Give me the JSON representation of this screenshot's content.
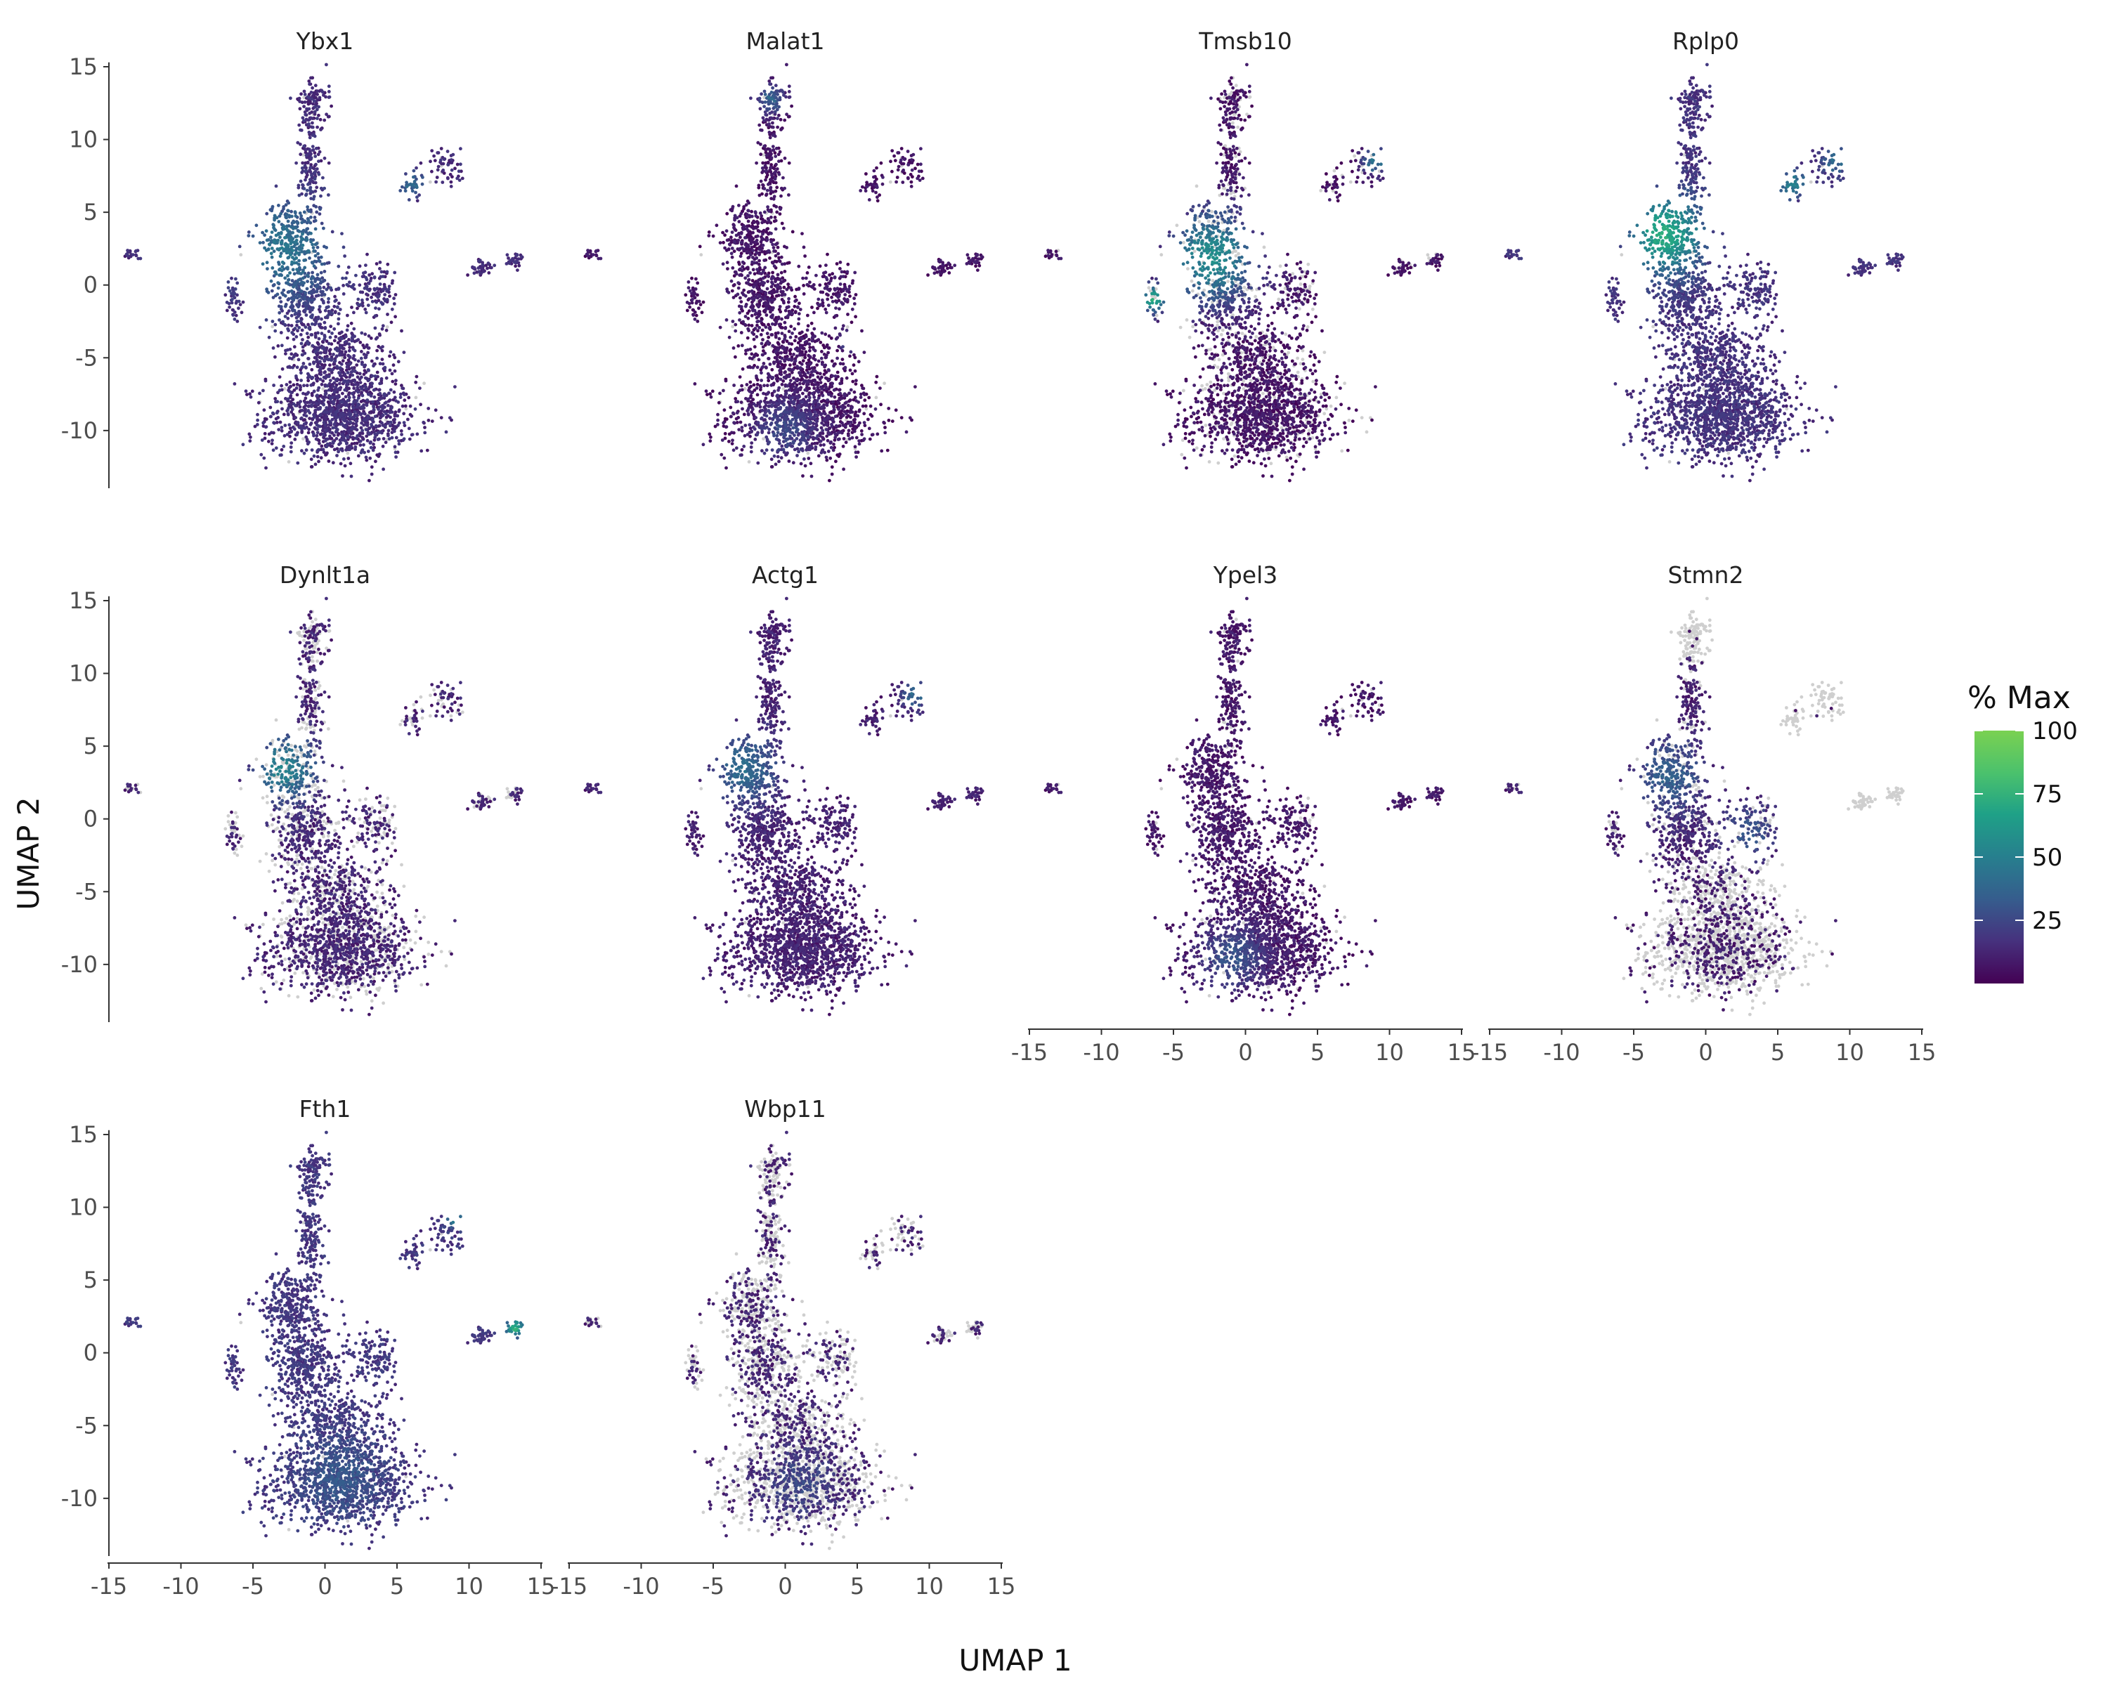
{
  "figure": {
    "xlabel": "UMAP 1",
    "ylabel": "UMAP 2",
    "legend_title": "% Max"
  },
  "colors": {
    "not_expressed": "#cfcfcf",
    "viridis": [
      "#440154",
      "#46327e",
      "#365c8d",
      "#277f8e",
      "#1fa187",
      "#4ac16d",
      "#7ad151"
    ]
  },
  "chart_data": {
    "type": "scatter",
    "facets": [
      "Ybx1",
      "Malat1",
      "Tmsb10",
      "Rplp0",
      "Dynlt1a",
      "Actg1",
      "Ypel3",
      "Stmn2",
      "Fth1",
      "Wbp11"
    ],
    "layout": "4 columns, 3 rows",
    "xlim": [
      -15,
      15
    ],
    "ylim": [
      -13,
      15
    ],
    "xticks": [
      -15,
      -10,
      -5,
      0,
      5,
      10,
      15
    ],
    "yticks": [
      -10,
      -5,
      0,
      5,
      10,
      15
    ],
    "legend": {
      "position": "right",
      "scale": "viridis",
      "range": [
        0,
        100
      ],
      "ticks": [
        25,
        50,
        75,
        100
      ]
    },
    "clusters": [
      {
        "name": "bottom-blob",
        "cx": 1.2,
        "cy": -9.0,
        "sx": 2.6,
        "sy": 1.5,
        "n": 1100
      },
      {
        "name": "trunk-lower",
        "cx": 0.8,
        "cy": -5.0,
        "sx": 1.9,
        "sy": 1.3,
        "n": 420
      },
      {
        "name": "trunk-mid",
        "cx": -1.2,
        "cy": -1.0,
        "sx": 1.3,
        "sy": 1.6,
        "n": 380
      },
      {
        "name": "left-lobe",
        "cx": -2.5,
        "cy": 3.2,
        "sx": 1.0,
        "sy": 1.2,
        "n": 280
      },
      {
        "name": "right-arm",
        "cx": 3.5,
        "cy": -0.5,
        "sx": 0.8,
        "sy": 1.0,
        "n": 120
      },
      {
        "name": "stem",
        "cx": -0.9,
        "cy": 8.0,
        "sx": 0.45,
        "sy": 1.6,
        "n": 150
      },
      {
        "name": "top",
        "cx": -0.8,
        "cy": 12.4,
        "sx": 0.6,
        "sy": 0.9,
        "n": 110
      },
      {
        "name": "far-left",
        "cx": -13.5,
        "cy": 2.1,
        "sx": 0.25,
        "sy": 0.2,
        "n": 20
      },
      {
        "name": "left-small",
        "cx": -6.3,
        "cy": -1.0,
        "sx": 0.3,
        "sy": 0.6,
        "n": 40
      },
      {
        "name": "upper-right-a",
        "cx": 6.0,
        "cy": 6.8,
        "sx": 0.4,
        "sy": 0.8,
        "n": 35
      },
      {
        "name": "upper-right-b",
        "cx": 8.5,
        "cy": 8.2,
        "sx": 0.6,
        "sy": 0.7,
        "n": 55
      },
      {
        "name": "mid-right-a",
        "cx": 10.8,
        "cy": 1.2,
        "sx": 0.4,
        "sy": 0.3,
        "n": 40
      },
      {
        "name": "mid-right-b",
        "cx": 13.2,
        "cy": 1.7,
        "sx": 0.3,
        "sy": 0.3,
        "n": 30
      }
    ],
    "expression": {
      "Ybx1": {
        "base": 0.14,
        "hot": [
          {
            "cx": -2.8,
            "cy": 2.5,
            "r": 3.5,
            "v": 0.3
          },
          {
            "cx": 6.0,
            "cy": 7.0,
            "r": 1.0,
            "v": 0.25
          }
        ],
        "zero": 0.02
      },
      "Malat1": {
        "base": 0.06,
        "hot": [
          {
            "cx": -1.0,
            "cy": 12.8,
            "r": 1.0,
            "v": 0.3
          },
          {
            "cx": 0.0,
            "cy": -10.0,
            "r": 2.2,
            "v": 0.18
          },
          {
            "cx": 4.5,
            "cy": -3.8,
            "r": 0.6,
            "v": 0.45
          }
        ],
        "zero": 0.02
      },
      "Tmsb10": {
        "base": 0.06,
        "hot": [
          {
            "cx": -2.3,
            "cy": 2.0,
            "r": 3.2,
            "v": 0.5
          },
          {
            "cx": -6.4,
            "cy": -1.0,
            "r": 0.9,
            "v": 0.6
          },
          {
            "cx": 9.0,
            "cy": 8.5,
            "r": 0.9,
            "v": 0.4
          }
        ],
        "zero": 0.18
      },
      "Rplp0": {
        "base": 0.16,
        "hot": [
          {
            "cx": -2.8,
            "cy": 3.5,
            "r": 2.6,
            "v": 0.55
          },
          {
            "cx": 6.0,
            "cy": 7.0,
            "r": 1.0,
            "v": 0.35
          },
          {
            "cx": 9.0,
            "cy": 8.5,
            "r": 0.9,
            "v": 0.25
          }
        ],
        "zero": 0.01
      },
      "Dynlt1a": {
        "base": 0.12,
        "hot": [
          {
            "cx": -2.8,
            "cy": 3.5,
            "r": 2.2,
            "v": 0.4
          }
        ],
        "zero": 0.32
      },
      "Actg1": {
        "base": 0.1,
        "hot": [
          {
            "cx": -2.8,
            "cy": 3.5,
            "r": 2.4,
            "v": 0.3
          },
          {
            "cx": 9.0,
            "cy": 8.5,
            "r": 0.9,
            "v": 0.3
          }
        ],
        "zero": 0.01
      },
      "Ypel3": {
        "base": 0.07,
        "hot": [
          {
            "cx": -1.0,
            "cy": -9.5,
            "r": 2.2,
            "v": 0.22
          }
        ],
        "zero": 0.05
      },
      "Stmn2": {
        "base": 0.1,
        "hot": [
          {
            "cx": -2.5,
            "cy": 3.0,
            "r": 2.5,
            "v": 0.25
          },
          {
            "cx": 3.0,
            "cy": -1.0,
            "r": 2.0,
            "v": 0.2
          }
        ],
        "zero": 0.15,
        "off_clusters": [
          "top",
          "upper-right-a",
          "upper-right-b",
          "mid-right-a",
          "mid-right-b"
        ],
        "bottom_zero": 0.7
      },
      "Fth1": {
        "base": 0.18,
        "hot": [
          {
            "cx": 1.0,
            "cy": -8.5,
            "r": 3.0,
            "v": 0.12
          },
          {
            "cx": 13.2,
            "cy": 1.7,
            "r": 0.6,
            "v": 0.55
          },
          {
            "cx": 9.0,
            "cy": 9.2,
            "r": 0.6,
            "v": 0.3
          }
        ],
        "zero": 0.01
      },
      "Wbp11": {
        "base": 0.12,
        "hot": [
          {
            "cx": 1.0,
            "cy": -9.0,
            "r": 2.5,
            "v": 0.12
          }
        ],
        "zero": 0.55
      }
    }
  }
}
